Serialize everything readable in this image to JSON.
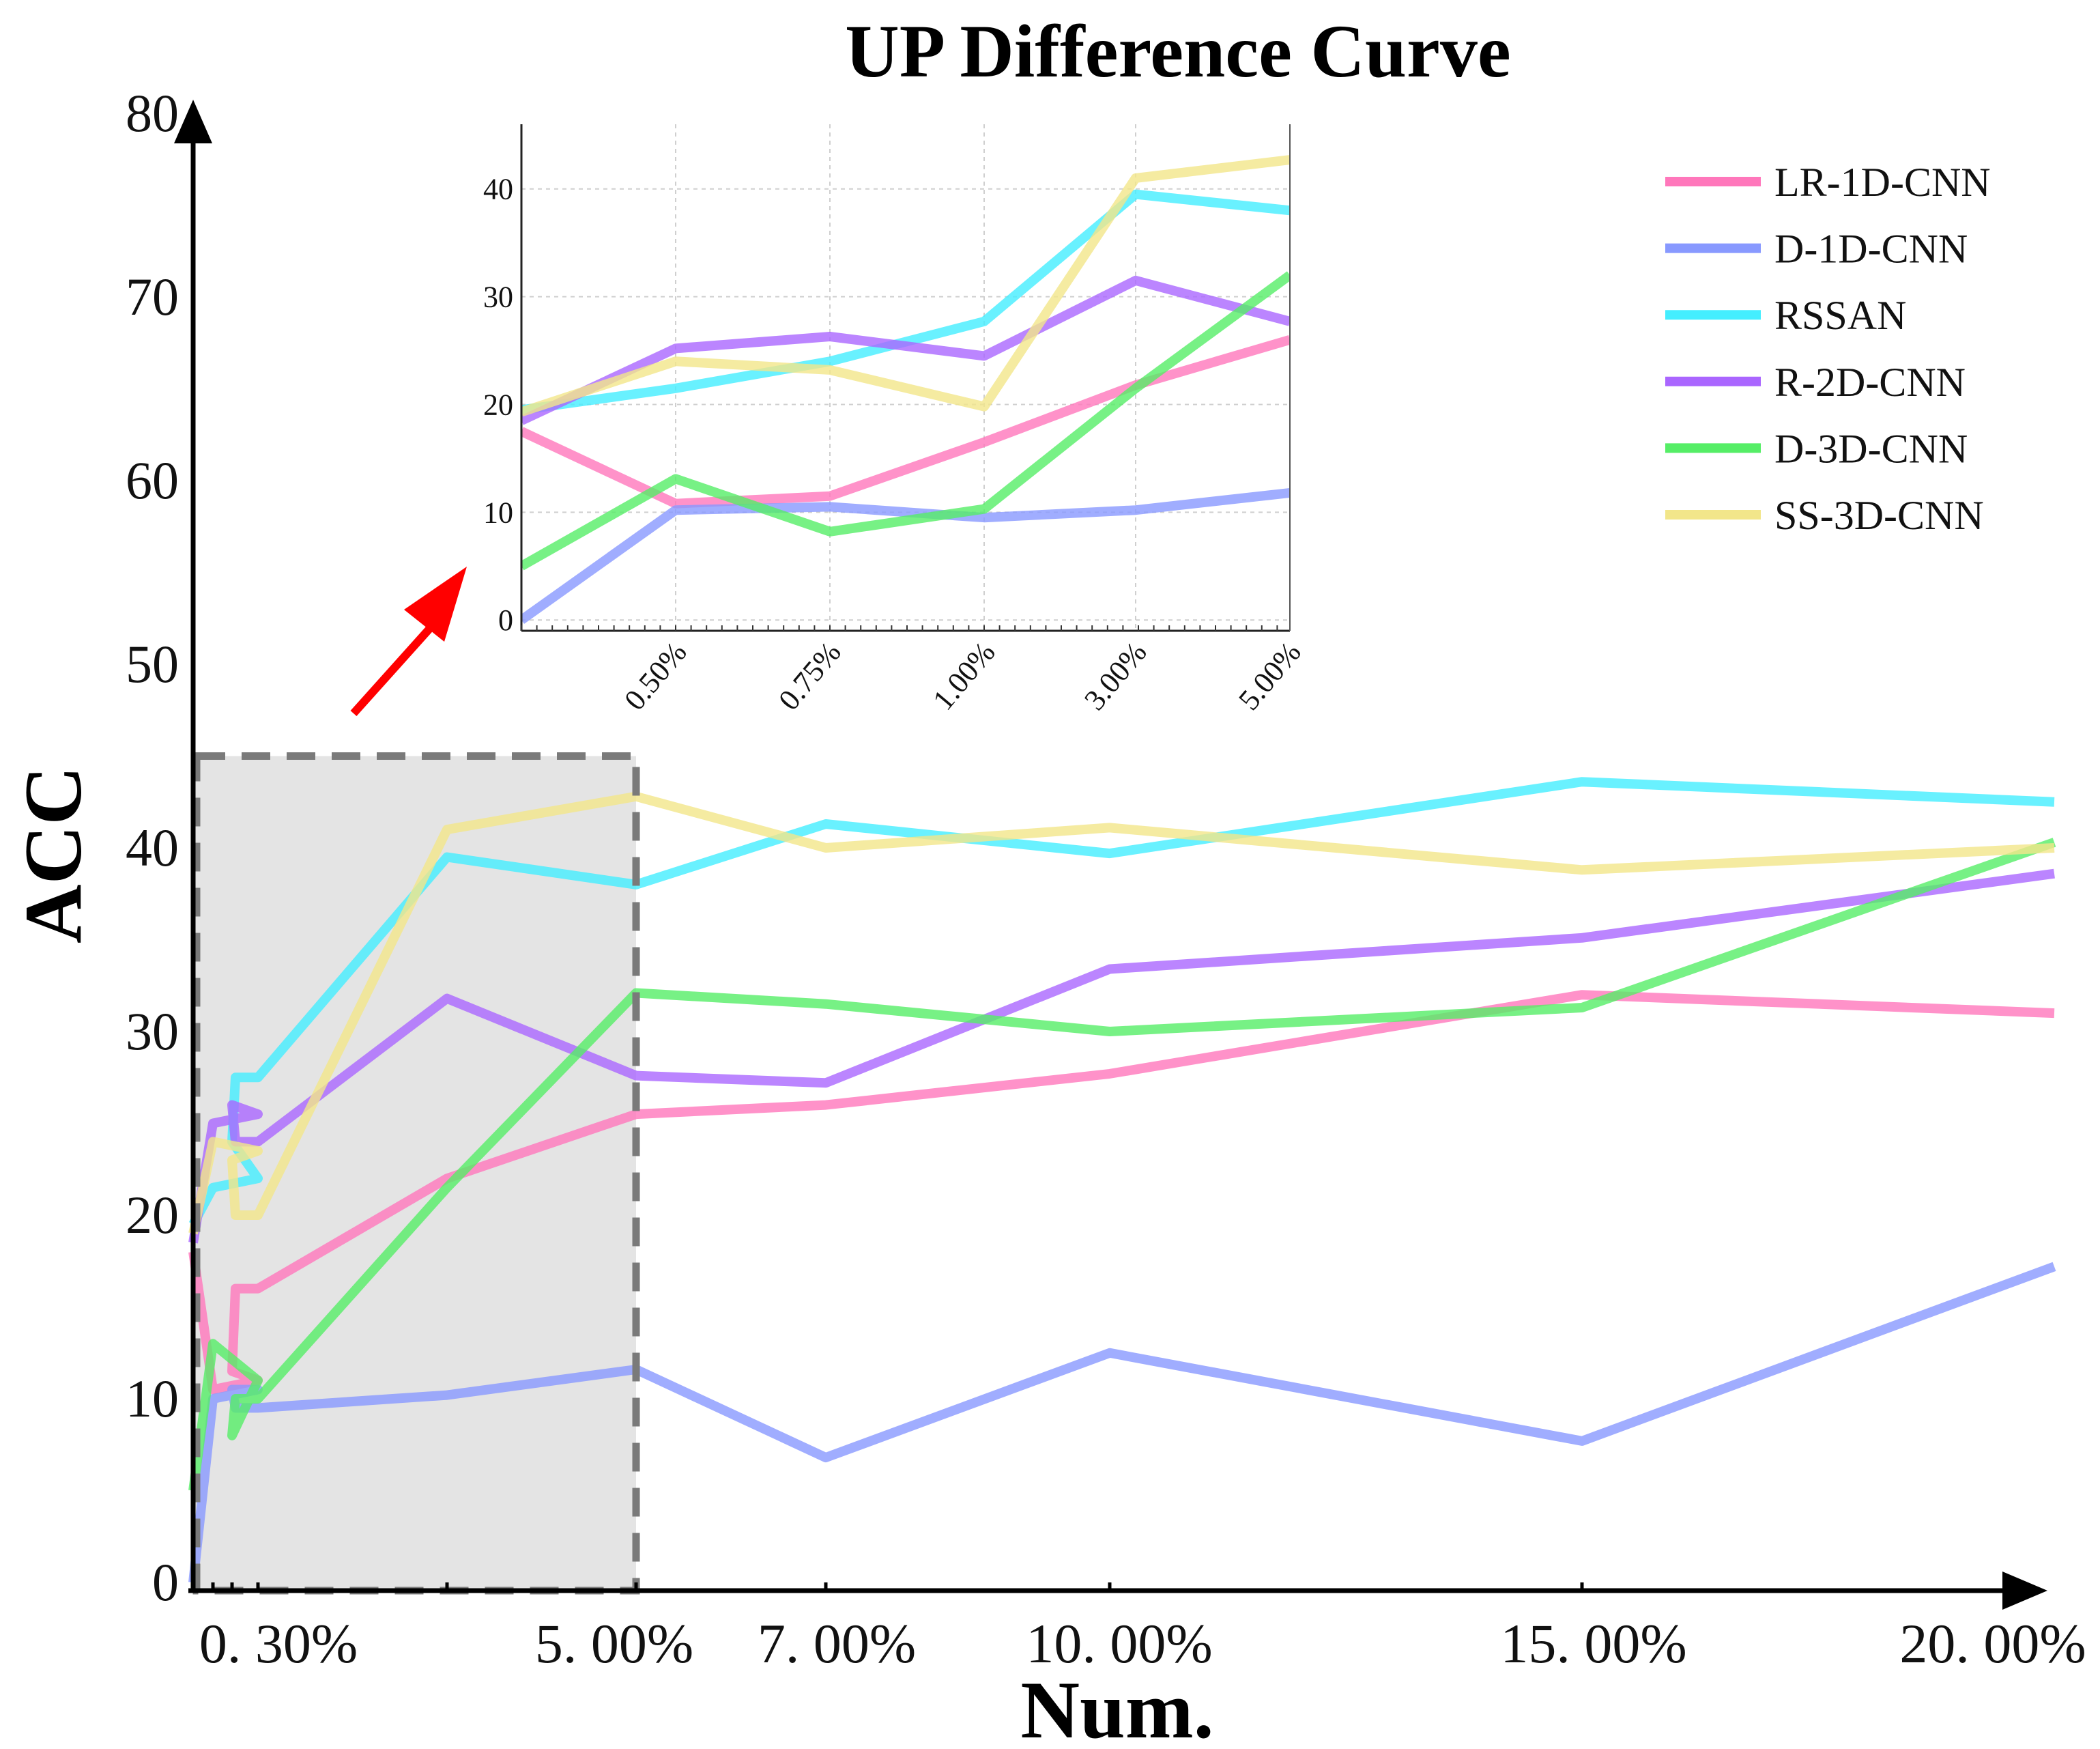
{
  "chart_data": {
    "type": "line",
    "title": "UP Difference Curve",
    "xlabel": "Num.",
    "ylabel": "ACC",
    "ylim": [
      0,
      80
    ],
    "y_ticks": [
      "0",
      "10",
      "20",
      "30",
      "40",
      "50",
      "60",
      "70",
      "80"
    ],
    "x": [
      "0.10%",
      "0.20%",
      "0.30%",
      "0.50%",
      "0.75%",
      "1.00%",
      "3.00%",
      "5.00%",
      "7.00%",
      "10.00%",
      "15.00%",
      "20.00%"
    ],
    "x_tick_labels": [
      "0. 30%",
      "5. 00%",
      "7. 00%",
      "10. 00%",
      "15. 00%",
      "20. 00%"
    ],
    "highlight_region": {
      "x_start": "0.10%",
      "x_end": "5.00%",
      "y_start": 0,
      "y_end": 45
    },
    "series": [
      {
        "name": "LR-1D-CNN",
        "color": "#ff77bb",
        "values": [
          18,
          10.5,
          11,
          11.5,
          16,
          16,
          22,
          25.5,
          26,
          27.7,
          32,
          31
        ]
      },
      {
        "name": "D-1D-CNN",
        "color": "#8899ff",
        "values": [
          0,
          10,
          10.5,
          10.5,
          9.5,
          9.5,
          10.2,
          11.6,
          6.8,
          12.5,
          7.7,
          17.2
        ]
      },
      {
        "name": "RSSAN",
        "color": "#44eeff",
        "values": [
          19.5,
          21.5,
          22,
          24,
          27.5,
          27.5,
          39.5,
          38,
          41.3,
          39.7,
          43.6,
          42.5
        ]
      },
      {
        "name": "R-2D-CNN",
        "color": "#aa66ff",
        "values": [
          18.5,
          25,
          25.5,
          26,
          24,
          24,
          31.8,
          27.6,
          27.2,
          33.4,
          35.1,
          38.6
        ]
      },
      {
        "name": "D-3D-CNN",
        "color": "#55ee66",
        "values": [
          5,
          13,
          11,
          8,
          10,
          10,
          21.5,
          32.1,
          31.5,
          30,
          31.3,
          40.3
        ]
      },
      {
        "name": "SS-3D-CNN",
        "color": "#f2e68a",
        "values": [
          19,
          24,
          23.5,
          23,
          20,
          20,
          41,
          42.8,
          40,
          41.1,
          38.8,
          40
        ]
      }
    ],
    "inset": {
      "x": [
        "0.25%",
        "0.50%",
        "0.75%",
        "1.00%",
        "3.00%",
        "5.00%"
      ],
      "x_tick_labels": [
        "0.50%",
        "0.75%",
        "1.00%",
        "3.00%",
        "5.00%"
      ],
      "ylim": [
        -1,
        46
      ],
      "y_ticks": [
        "0",
        "10",
        "20",
        "30",
        "40"
      ],
      "series": [
        {
          "name": "LR-1D-CNN",
          "values": [
            17.5,
            10.8,
            11.5,
            16.5,
            21.8,
            26
          ]
        },
        {
          "name": "D-1D-CNN",
          "values": [
            0,
            10.2,
            10.5,
            9.5,
            10.2,
            11.8
          ]
        },
        {
          "name": "RSSAN",
          "values": [
            19.5,
            21.5,
            24,
            27.7,
            39.5,
            38
          ]
        },
        {
          "name": "R-2D-CNN",
          "values": [
            18.5,
            25.2,
            26.3,
            24.5,
            31.5,
            27.7
          ]
        },
        {
          "name": "D-3D-CNN",
          "values": [
            5,
            13.1,
            8.2,
            10.3,
            21.5,
            32
          ]
        },
        {
          "name": "SS-3D-CNN",
          "values": [
            19.3,
            24,
            23.2,
            19.8,
            41,
            42.7
          ]
        }
      ]
    }
  }
}
